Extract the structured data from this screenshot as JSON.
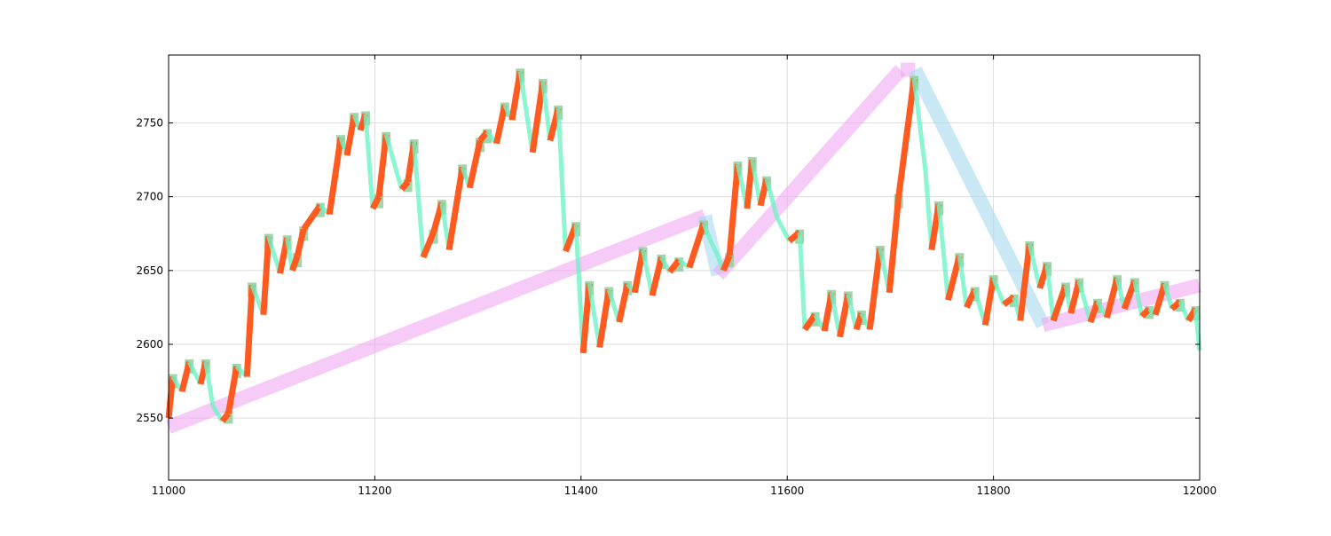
{
  "chart_data": {
    "type": "line",
    "title": "",
    "xlabel": "",
    "ylabel": "",
    "xlim": [
      11000,
      12000
    ],
    "ylim": [
      2508,
      2796
    ],
    "grid": true,
    "x_ticks": [
      11000,
      11200,
      11400,
      11600,
      11800,
      12000
    ],
    "y_ticks": [
      2550,
      2600,
      2650,
      2700,
      2750
    ],
    "x_tick_labels": [
      "11000",
      "11200",
      "11400",
      "11600",
      "11800",
      "12000"
    ],
    "y_tick_labels": [
      "2550",
      "2600",
      "2650",
      "2700",
      "2750"
    ],
    "colors": {
      "up_segment": "#ff5a1f",
      "down_segment": "#6ff2c6",
      "bar_up": "#8fcf9a",
      "trend_up": "#f2a8f2",
      "trend_down": "#a9d8f0",
      "grid": "#dddddd",
      "axis": "#000000"
    },
    "series": [
      {
        "role": "price-swings",
        "x": [
          11000,
          11004,
          11013,
          11020,
          11031,
          11036,
          11043,
          11052,
          11058,
          11066,
          11076,
          11081,
          11092,
          11097,
          11108,
          11115,
          11120,
          11125,
          11131,
          11147,
          11156,
          11167,
          11173,
          11180,
          11186,
          11191,
          11198,
          11204,
          11211,
          11226,
          11232,
          11238,
          11247,
          11257,
          11265,
          11272,
          11285,
          11292,
          11302,
          11309,
          11318,
          11326,
          11333,
          11341,
          11353,
          11363,
          11370,
          11378,
          11385,
          11395,
          11402,
          11408,
          11418,
          11427,
          11437,
          11445,
          11452,
          11460,
          11469,
          11478,
          11486,
          11495,
          11505,
          11519,
          11525,
          11532,
          11538,
          11544,
          11552,
          11561,
          11566,
          11574,
          11580,
          11590,
          11602,
          11612,
          11617,
          11627,
          11636,
          11643,
          11651,
          11659,
          11667,
          11672,
          11680,
          11690,
          11699,
          11708,
          11723,
          11734,
          11740,
          11747,
          11756,
          11767,
          11774,
          11782,
          11792,
          11800,
          11810,
          11820,
          11826,
          11835,
          11845,
          11852,
          11858,
          11870,
          11875,
          11883,
          11894,
          11901,
          11910,
          11920,
          11927,
          11937,
          11944,
          11951,
          11957,
          11966,
          11973,
          11981,
          11989,
          11996,
          12000
        ],
        "y": [
          2550,
          2578,
          2568,
          2588,
          2573,
          2588,
          2558,
          2548,
          2553,
          2585,
          2578,
          2640,
          2620,
          2673,
          2648,
          2672,
          2650,
          2660,
          2678,
          2694,
          2688,
          2740,
          2728,
          2755,
          2745,
          2756,
          2692,
          2700,
          2742,
          2705,
          2710,
          2737,
          2659,
          2676,
          2696,
          2664,
          2720,
          2706,
          2738,
          2744,
          2736,
          2762,
          2752,
          2785,
          2730,
          2778,
          2738,
          2760,
          2663,
          2681,
          2594,
          2641,
          2598,
          2637,
          2615,
          2641,
          2635,
          2664,
          2633,
          2659,
          2649,
          2657,
          2652,
          2682,
          2671,
          2661,
          2650,
          2660,
          2722,
          2692,
          2725,
          2694,
          2712,
          2686,
          2670,
          2676,
          2610,
          2620,
          2609,
          2635,
          2605,
          2634,
          2610,
          2621,
          2610,
          2665,
          2635,
          2700,
          2780,
          2718,
          2664,
          2695,
          2630,
          2660,
          2625,
          2637,
          2613,
          2645,
          2627,
          2632,
          2616,
          2668,
          2638,
          2654,
          2616,
          2640,
          2621,
          2643,
          2615,
          2629,
          2618,
          2645,
          2624,
          2643,
          2619,
          2624,
          2620,
          2641,
          2624,
          2629,
          2616,
          2624,
          2596
        ]
      },
      {
        "role": "trend-zigzag",
        "x": [
          11000,
          11520,
          11533,
          11710,
          11724,
          11848,
          12000
        ],
        "y": [
          2544,
          2687,
          2647,
          2786,
          2786,
          2613,
          2640
        ]
      }
    ]
  }
}
